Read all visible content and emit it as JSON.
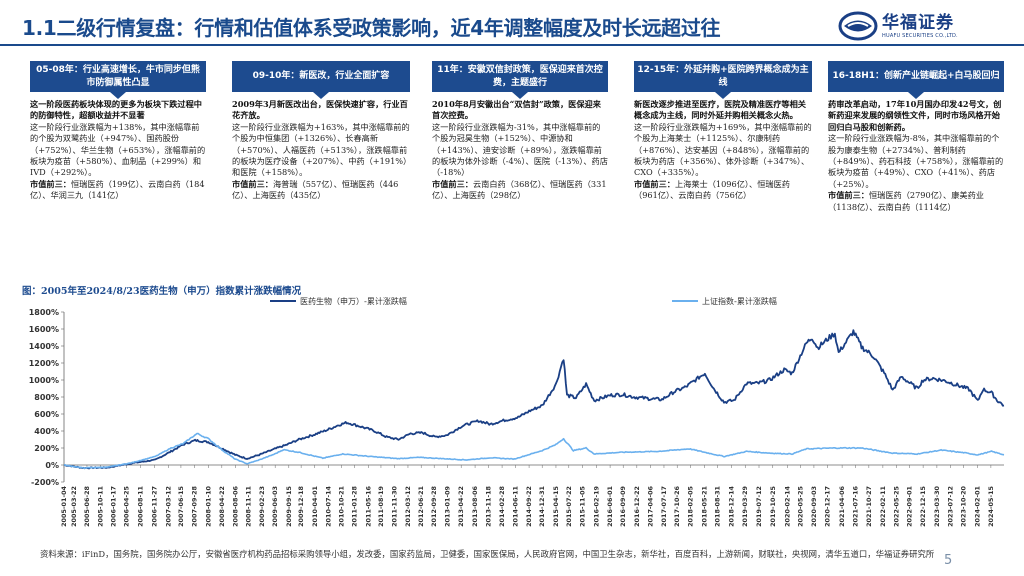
{
  "header": {
    "title": "1.1二级行情复盘：行情和估值体系受政策影响，近4年调整幅度及时长远超过往",
    "logo_cn": "华福证券",
    "logo_en": "HUAFU SECURITIES CO.,LTD."
  },
  "phases": [
    {
      "head": "05-08年：行业高速增长，牛市同步但熊市防御属性凸显",
      "lead": "这一阶段医药板块体现的更多为板块下跌过程中的防御特性，超额收益并不显著",
      "body": "这一阶段行业涨跌幅为+138%，其中涨幅靠前的个股为双鹭药业（+947%）、国药股份（+752%）、华兰生物（+653%），涨幅靠前的板块为疫苗（+580%）、血制品（+299%）和IVD（+292%）。",
      "top3_label": "市值前三：",
      "top3": "恒瑞医药（199亿）、云南白药（184亿）、华润三九（141亿）"
    },
    {
      "head": "09-10年：新医改，行业全面扩容",
      "lead": "2009年3月新医改出台，医保快速扩容，行业百花齐放。",
      "body": "这一阶段行业涨跌幅为+163%，其中涨幅靠前的个股为中恒集团（+1326%）、长春高新（+570%）、人福医药（+513%），涨跌幅靠前的板块为医疗设备（+207%）、中药（+191%）和医院（+158%）。",
      "top3_label": "市值前三：",
      "top3": "海普瑞（557亿）、恒瑞医药（446亿）、上海医药（435亿）"
    },
    {
      "head": "11年：安徽双信封政策，医保迎来首次控费，主题盛行",
      "lead": "2010年8月安徽出台“双信封”政策，医保迎来首次控费。",
      "body": "这一阶段行业涨跌幅为-31%，其中涨幅靠前的个股为冠昊生物（+152%）、中源协和（+143%）、迪安诊断（+89%），涨跌幅靠前的板块为体外诊断（-4%）、医院（-13%）、药店（-18%）",
      "top3_label": "市值前三：",
      "top3": "云南白药（368亿）、恒瑞医药（331亿）、上海医药（298亿）"
    },
    {
      "head": "12-15年：外延并购+医院跨界概念成为主线",
      "lead": "新医改逐步推进至医疗，医院及精准医疗等相关概念成为主线，同时外延并购相关概念火热。",
      "body": "这一阶段行业涨跌幅为+169%，其中涨幅靠前的个股为上海莱士（+1125%）、尔康制药（+876%）、达安基因（+848%），涨幅靠前的板块为药店（+356%）、体外诊断（+347%）、CXO（+335%）。",
      "top3_label": "市值前三：",
      "top3": "上海莱士（1096亿）、恒瑞医药（961亿）、云南白药（756亿）"
    },
    {
      "head": "16-18H1：创新产业链崛起+白马股回归",
      "lead": "药审改革启动，17年10月国办印发42号文，创新药迎来发展的纲领性文件，同时市场风格开始回归白马股和创新药。",
      "body": "这一阶段行业涨跌幅为-8%，其中涨幅靠前的个股为康泰生物（+2734%）、普利制药（+849%）、药石科技（+758%），涨幅靠前的板块为疫苗（+49%）、CXO（+41%）、药店（+25%）。",
      "top3_label": "市值前三：",
      "top3": "恒瑞医药（2790亿）、康美药业（1138亿）、云南白药（1114亿）"
    }
  ],
  "chart_title": "图：2005年至2024/8/23医药生物（申万）指数累计涨跌幅情况",
  "chart_data": {
    "type": "line",
    "title": "图：2005年至2024/8/23医药生物（申万）指数累计涨跌幅情况",
    "ylim": [
      -200,
      1800
    ],
    "yticks": [
      "-200%",
      "0%",
      "200%",
      "400%",
      "600%",
      "800%",
      "1000%",
      "1200%",
      "1400%",
      "1600%",
      "1800%"
    ],
    "ytick_values": [
      -200,
      0,
      200,
      400,
      600,
      800,
      1000,
      1200,
      1400,
      1600,
      1800
    ],
    "x_start": "2005-01-04",
    "x_end": "2024-08-23",
    "xticks": [
      "2005-01-04",
      "2005-03-22",
      "2005-06-28",
      "2005-10-11",
      "2006-01-17",
      "2006-04-25",
      "2006-08-11",
      "2006-11-27",
      "2007-03-12",
      "2007-06-15",
      "2007-09-28",
      "2008-01-10",
      "2008-04-22",
      "2008-08-06",
      "2008-11-11",
      "2009-02-23",
      "2009-06-03",
      "2009-09-15",
      "2009-12-18",
      "2010-04-01",
      "2010-07-14",
      "2010-10-21",
      "2011-01-28",
      "2011-05-16",
      "2011-08-19",
      "2011-11-30",
      "2012-03-12",
      "2012-06-21",
      "2012-09-28",
      "2013-01-09",
      "2013-04-22",
      "2013-08-06",
      "2013-11-18",
      "2014-02-28",
      "2014-06-11",
      "2014-09-22",
      "2014-12-31",
      "2015-04-15",
      "2015-07-22",
      "2015-11-05",
      "2016-02-19",
      "2016-06-01",
      "2016-09-09",
      "2016-12-22",
      "2017-04-06",
      "2017-07-17",
      "2017-10-26",
      "2018-02-05",
      "2018-05-21",
      "2018-08-31",
      "2018-12-14",
      "2019-03-29",
      "2019-07-12",
      "2019-10-25",
      "2020-02-14",
      "2020-05-25",
      "2020-09-03",
      "2020-12-17",
      "2021-04-06",
      "2021-07-16",
      "2021-10-27",
      "2022-02-11",
      "2022-05-25",
      "2022-09-01",
      "2022-12-15",
      "2023-03-30",
      "2023-07-12",
      "2023-10-20",
      "2024-02-01",
      "2024-05-15"
    ],
    "series": [
      {
        "name": "医药生物（申万）-累计涨跌幅",
        "color": "#1a3f85",
        "points": [
          [
            "2005-01-04",
            0
          ],
          [
            "2005-06-01",
            -35
          ],
          [
            "2005-12-01",
            -30
          ],
          [
            "2006-06-01",
            20
          ],
          [
            "2006-12-01",
            60
          ],
          [
            "2007-04-01",
            160
          ],
          [
            "2007-07-01",
            240
          ],
          [
            "2007-10-01",
            290
          ],
          [
            "2008-01-10",
            270
          ],
          [
            "2008-05-01",
            190
          ],
          [
            "2008-08-01",
            120
          ],
          [
            "2008-11-01",
            75
          ],
          [
            "2009-02-01",
            120
          ],
          [
            "2009-06-01",
            190
          ],
          [
            "2009-09-01",
            240
          ],
          [
            "2009-12-01",
            300
          ],
          [
            "2010-04-01",
            360
          ],
          [
            "2010-07-01",
            410
          ],
          [
            "2010-10-01",
            470
          ],
          [
            "2010-12-01",
            500
          ],
          [
            "2011-03-01",
            460
          ],
          [
            "2011-07-01",
            400
          ],
          [
            "2011-10-01",
            330
          ],
          [
            "2011-12-30",
            300
          ],
          [
            "2012-04-01",
            370
          ],
          [
            "2012-07-01",
            380
          ],
          [
            "2012-10-01",
            330
          ],
          [
            "2013-01-01",
            350
          ],
          [
            "2013-05-01",
            460
          ],
          [
            "2013-09-01",
            520
          ],
          [
            "2013-12-01",
            480
          ],
          [
            "2014-03-01",
            520
          ],
          [
            "2014-07-01",
            560
          ],
          [
            "2014-10-01",
            640
          ],
          [
            "2015-01-01",
            700
          ],
          [
            "2015-04-15",
            950
          ],
          [
            "2015-06-12",
            1260
          ],
          [
            "2015-07-08",
            820
          ],
          [
            "2015-09-15",
            790
          ],
          [
            "2015-12-01",
            950
          ],
          [
            "2016-02-01",
            760
          ],
          [
            "2016-06-01",
            820
          ],
          [
            "2016-09-01",
            830
          ],
          [
            "2016-12-01",
            800
          ],
          [
            "2017-04-01",
            780
          ],
          [
            "2017-07-01",
            770
          ],
          [
            "2017-10-01",
            860
          ],
          [
            "2018-01-01",
            920
          ],
          [
            "2018-05-25",
            1080
          ],
          [
            "2018-08-01",
            900
          ],
          [
            "2018-10-18",
            740
          ],
          [
            "2019-01-02",
            760
          ],
          [
            "2019-04-08",
            960
          ],
          [
            "2019-07-01",
            960
          ],
          [
            "2019-10-01",
            1000
          ],
          [
            "2020-01-20",
            1120
          ],
          [
            "2020-03-20",
            1080
          ],
          [
            "2020-07-06",
            1430
          ],
          [
            "2020-08-20",
            1500
          ],
          [
            "2020-10-01",
            1380
          ],
          [
            "2020-12-31",
            1500
          ],
          [
            "2021-02-10",
            1550
          ],
          [
            "2021-03-10",
            1320
          ],
          [
            "2021-07-01",
            1570
          ],
          [
            "2021-09-01",
            1390
          ],
          [
            "2021-12-01",
            1280
          ],
          [
            "2022-03-01",
            1060
          ],
          [
            "2022-04-27",
            880
          ],
          [
            "2022-07-01",
            1040
          ],
          [
            "2022-10-31",
            900
          ],
          [
            "2022-12-15",
            1000
          ],
          [
            "2023-03-01",
            1020
          ],
          [
            "2023-06-01",
            990
          ],
          [
            "2023-09-01",
            940
          ],
          [
            "2023-12-01",
            890
          ],
          [
            "2024-02-05",
            750
          ],
          [
            "2024-03-15",
            890
          ],
          [
            "2024-05-20",
            850
          ],
          [
            "2024-07-01",
            760
          ],
          [
            "2024-08-23",
            700
          ]
        ]
      },
      {
        "name": "上证指数-累计涨跌幅",
        "color": "#6ab0ee",
        "points": [
          [
            "2005-01-04",
            0
          ],
          [
            "2005-06-01",
            -35
          ],
          [
            "2005-12-01",
            -25
          ],
          [
            "2006-06-01",
            25
          ],
          [
            "2006-12-01",
            100
          ],
          [
            "2007-04-01",
            200
          ],
          [
            "2007-07-01",
            250
          ],
          [
            "2007-10-16",
            370
          ],
          [
            "2008-01-10",
            310
          ],
          [
            "2008-05-01",
            170
          ],
          [
            "2008-08-01",
            70
          ],
          [
            "2008-11-01",
            15
          ],
          [
            "2009-02-01",
            60
          ],
          [
            "2009-06-01",
            130
          ],
          [
            "2009-08-04",
            180
          ],
          [
            "2009-12-01",
            150
          ],
          [
            "2010-06-01",
            80
          ],
          [
            "2010-11-01",
            130
          ],
          [
            "2011-06-01",
            100
          ],
          [
            "2011-12-30",
            75
          ],
          [
            "2012-06-01",
            90
          ],
          [
            "2012-12-01",
            75
          ],
          [
            "2013-06-01",
            60
          ],
          [
            "2013-12-01",
            85
          ],
          [
            "2014-06-01",
            70
          ],
          [
            "2014-12-31",
            170
          ],
          [
            "2015-04-15",
            240
          ],
          [
            "2015-06-12",
            310
          ],
          [
            "2015-08-26",
            170
          ],
          [
            "2015-12-01",
            200
          ],
          [
            "2016-02-01",
            130
          ],
          [
            "2016-09-01",
            150
          ],
          [
            "2017-06-01",
            160
          ],
          [
            "2018-01-26",
            190
          ],
          [
            "2018-10-18",
            100
          ],
          [
            "2019-04-08",
            160
          ],
          [
            "2019-10-01",
            140
          ],
          [
            "2020-03-20",
            130
          ],
          [
            "2020-07-10",
            190
          ],
          [
            "2021-02-18",
            200
          ],
          [
            "2021-09-01",
            200
          ],
          [
            "2022-04-27",
            140
          ],
          [
            "2022-10-31",
            130
          ],
          [
            "2023-05-01",
            175
          ],
          [
            "2023-10-20",
            145
          ],
          [
            "2024-02-05",
            120
          ],
          [
            "2024-05-20",
            160
          ],
          [
            "2024-08-23",
            120
          ]
        ]
      }
    ],
    "legend_position": "top-center"
  },
  "footer": {
    "source": "资料来源：iFinD，国务院，国务院办公厅，安徽省医疗机构药品招标采购领导小组，发改委，国家药监局，卫健委，国家医保局，人民政府官网，中国卫生杂志，新华社，百度百科，上游新闻，财联社，央视网，清华五道口，华福证券研究所",
    "page": "5"
  },
  "colors": {
    "brand": "#1a4a8c",
    "phase_head": "#1d4b8f"
  }
}
